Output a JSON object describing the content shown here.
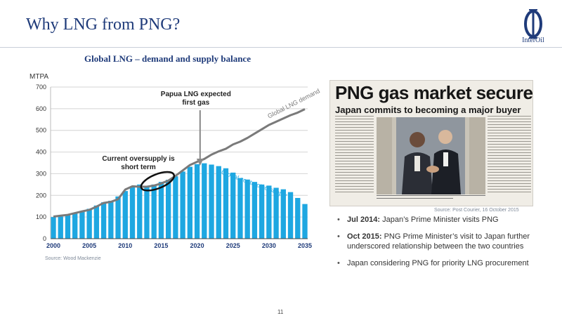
{
  "slide": {
    "title": "Why LNG from PNG?",
    "logo_text": "InterOil",
    "page_number": "11"
  },
  "chart": {
    "heading": "Global LNG – demand and supply balance",
    "source": "Source: Wood Mackenzie"
  },
  "chart_data": {
    "type": "bar",
    "ylabel": "MTPA",
    "ylim": [
      0,
      700
    ],
    "yticks": [
      0,
      100,
      200,
      300,
      400,
      500,
      600,
      700
    ],
    "xticks": [
      2000,
      2005,
      2010,
      2015,
      2020,
      2025,
      2030,
      2035
    ],
    "grid": true,
    "x": [
      2000,
      2001,
      2002,
      2003,
      2004,
      2005,
      2006,
      2007,
      2008,
      2009,
      2010,
      2011,
      2012,
      2013,
      2014,
      2015,
      2016,
      2017,
      2018,
      2019,
      2020,
      2021,
      2022,
      2023,
      2024,
      2025,
      2026,
      2027,
      2028,
      2029,
      2030,
      2031,
      2032,
      2033,
      2034,
      2035
    ],
    "series": [
      {
        "name": "Global contracted supply",
        "type": "bar",
        "color": "#1ea7e1",
        "values": [
          100,
          102,
          108,
          120,
          128,
          138,
          153,
          168,
          175,
          195,
          220,
          240,
          250,
          243,
          250,
          262,
          272,
          288,
          310,
          332,
          344,
          348,
          342,
          335,
          325,
          305,
          280,
          273,
          262,
          250,
          245,
          235,
          228,
          215,
          188,
          160
        ]
      },
      {
        "name": "Global LNG demand",
        "type": "line",
        "color": "#7a7a7a",
        "values": [
          102,
          106,
          110,
          118,
          126,
          133,
          148,
          165,
          170,
          182,
          227,
          242,
          240,
          240,
          245,
          255,
          268,
          290,
          315,
          340,
          355,
          368,
          388,
          403,
          415,
          435,
          448,
          465,
          485,
          505,
          525,
          540,
          555,
          570,
          582,
          598
        ]
      }
    ],
    "annotations": [
      {
        "text": "Papua LNG expected first gas",
        "lines": [
          "Papua LNG expected",
          "first gas"
        ],
        "x": 2021
      },
      {
        "text": "Current oversupply is short term",
        "lines": [
          "Current oversupply is",
          "short term"
        ],
        "x": 2014.5
      }
    ]
  },
  "clipping": {
    "headline": "PNG gas market secured",
    "subheadline": "Japan commits to becoming a major buyer",
    "source": "Source: Post Courier, 16 October 2015"
  },
  "bullets": [
    {
      "bold": "Jul 2014:",
      "text": " Japan’s Prime Minister visits PNG"
    },
    {
      "bold": "Oct 2015:",
      "text": " PNG Prime Minister’s visit to Japan further underscored relationship between the two countries"
    },
    {
      "bold": "",
      "text": "Japan considering PNG for priority LNG procurement"
    }
  ],
  "colors": {
    "brand_navy": "#1f3b7a",
    "bar_blue": "#1ea7e1",
    "demand_grey": "#7a7a7a"
  }
}
